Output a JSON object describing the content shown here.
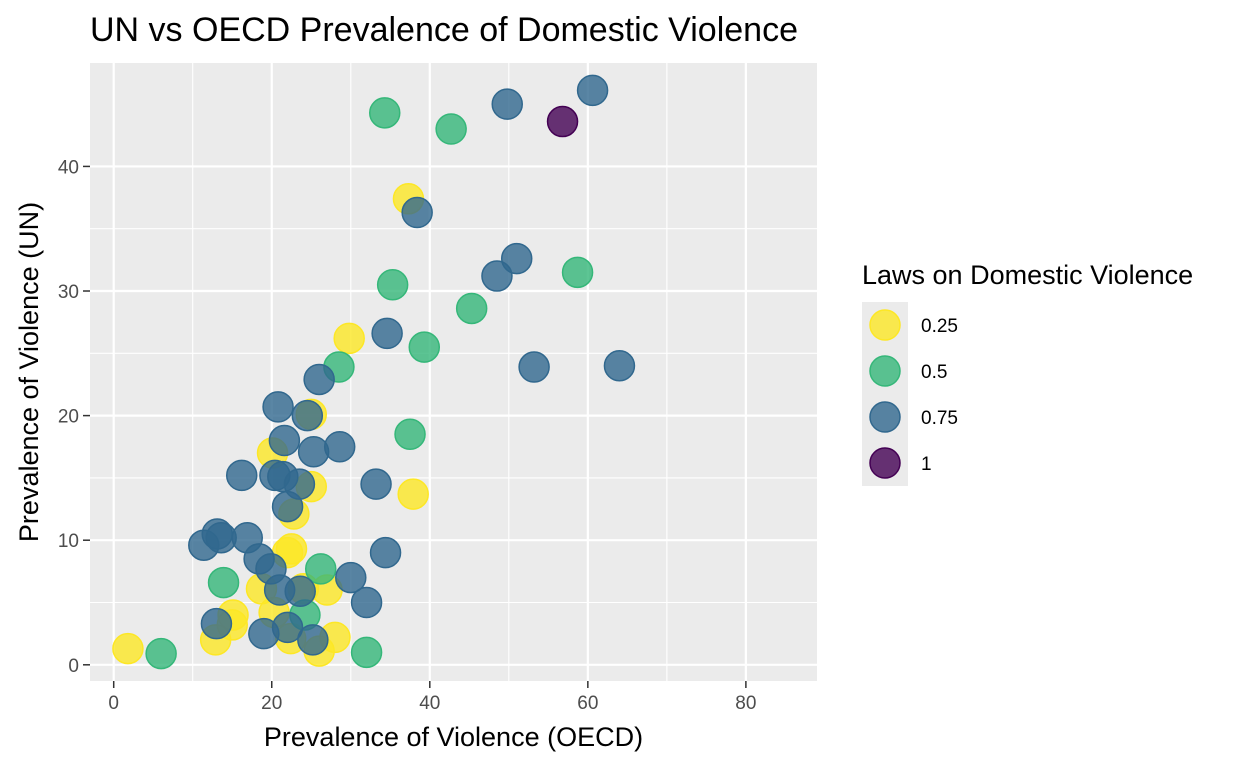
{
  "chart_data": {
    "type": "scatter",
    "title": "UN vs OECD Prevalence of Domestic Violence",
    "xlabel": "Prevalence of Violence (OECD)",
    "ylabel": "Prevalence of Violence (UN)",
    "xlim": [
      -3,
      89
    ],
    "ylim": [
      -1.3,
      48.3
    ],
    "xticks": [
      0,
      20,
      40,
      60,
      80
    ],
    "yticks": [
      0,
      10,
      20,
      30,
      40
    ],
    "grid": true,
    "legend": {
      "title": "Laws on Domestic Violence",
      "placement": "right",
      "entries": [
        {
          "label": "0.25",
          "color": "#FDE725"
        },
        {
          "label": "0.5",
          "color": "#35B779"
        },
        {
          "label": "0.75",
          "color": "#31688E"
        },
        {
          "label": "1",
          "color": "#440154"
        }
      ]
    },
    "series": [
      {
        "name": "0.25",
        "color": "#FDE725",
        "points": [
          [
            37.3,
            37.4
          ],
          [
            29.8,
            26.2
          ],
          [
            25.0,
            20.1
          ],
          [
            20.1,
            17.0
          ],
          [
            25.0,
            14.3
          ],
          [
            22.8,
            12.1
          ],
          [
            37.9,
            13.7
          ],
          [
            22.0,
            9.0
          ],
          [
            22.5,
            9.3
          ],
          [
            15.1,
            4.0
          ],
          [
            15.0,
            3.2
          ],
          [
            18.7,
            6.1
          ],
          [
            20.3,
            4.2
          ],
          [
            24.0,
            6.1
          ],
          [
            27.0,
            6.0
          ],
          [
            1.8,
            1.3
          ],
          [
            12.9,
            2.0
          ],
          [
            22.4,
            2.1
          ],
          [
            26.0,
            1.1
          ],
          [
            28.0,
            2.2
          ]
        ]
      },
      {
        "name": "0.5",
        "color": "#35B779",
        "points": [
          [
            34.3,
            44.3
          ],
          [
            42.7,
            43.0
          ],
          [
            35.3,
            30.5
          ],
          [
            58.7,
            31.5
          ],
          [
            45.3,
            28.6
          ],
          [
            39.3,
            25.5
          ],
          [
            28.5,
            23.9
          ],
          [
            37.5,
            18.5
          ],
          [
            13.9,
            6.6
          ],
          [
            26.2,
            7.7
          ],
          [
            24.2,
            4.0
          ],
          [
            6.0,
            0.9
          ],
          [
            32.0,
            1.0
          ]
        ]
      },
      {
        "name": "0.75",
        "color": "#31688E",
        "points": [
          [
            49.8,
            45.0
          ],
          [
            60.6,
            46.1
          ],
          [
            38.4,
            36.3
          ],
          [
            51.0,
            32.6
          ],
          [
            48.5,
            31.2
          ],
          [
            34.6,
            26.6
          ],
          [
            26.0,
            22.9
          ],
          [
            53.2,
            23.9
          ],
          [
            64.0,
            24.0
          ],
          [
            20.8,
            20.7
          ],
          [
            24.5,
            20.0
          ],
          [
            21.6,
            18.0
          ],
          [
            25.3,
            17.1
          ],
          [
            28.6,
            17.5
          ],
          [
            16.2,
            15.2
          ],
          [
            20.4,
            15.2
          ],
          [
            21.4,
            15.1
          ],
          [
            23.5,
            14.5
          ],
          [
            22.0,
            12.7
          ],
          [
            33.2,
            14.5
          ],
          [
            11.4,
            9.6
          ],
          [
            13.1,
            10.5
          ],
          [
            13.6,
            10.2
          ],
          [
            16.9,
            10.2
          ],
          [
            18.4,
            8.5
          ],
          [
            19.9,
            7.7
          ],
          [
            34.4,
            9.0
          ],
          [
            30.0,
            7.0
          ],
          [
            21.0,
            6.0
          ],
          [
            23.6,
            5.9
          ],
          [
            32.0,
            5.0
          ],
          [
            13.0,
            3.3
          ],
          [
            19.0,
            2.5
          ],
          [
            22.0,
            3.0
          ],
          [
            25.2,
            2.0
          ]
        ]
      },
      {
        "name": "1",
        "color": "#440154",
        "points": [
          [
            56.8,
            43.6
          ]
        ]
      }
    ]
  }
}
